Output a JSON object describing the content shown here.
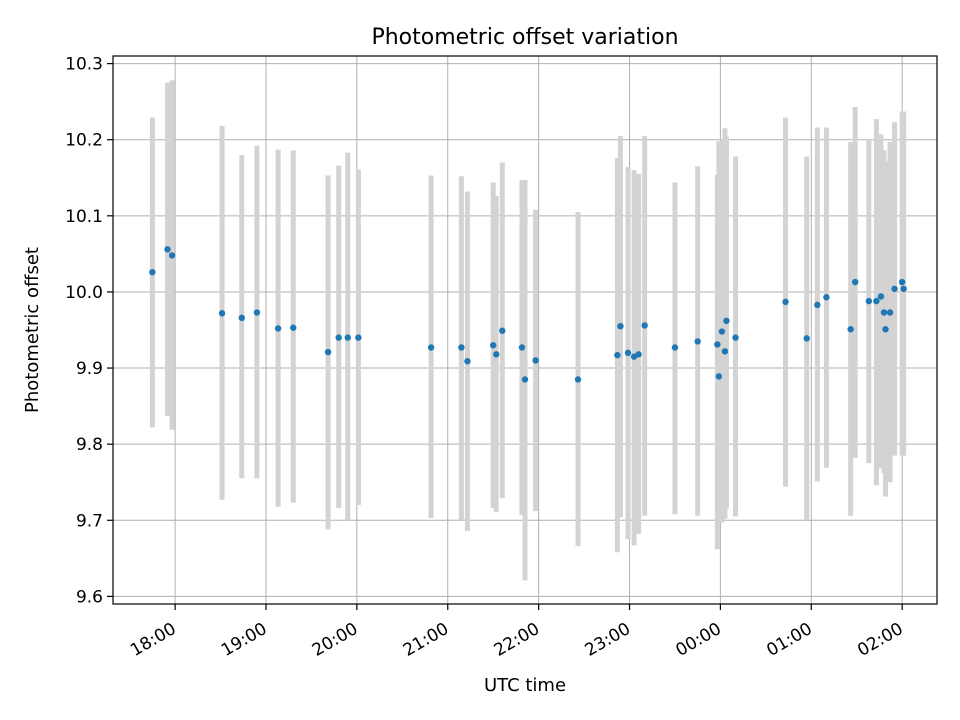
{
  "chart_data": {
    "type": "scatter",
    "title": "Photometric offset variation",
    "xlabel": "UTC time",
    "ylabel": "Photometric offset",
    "x_ticks": [
      "18:00",
      "19:00",
      "20:00",
      "21:00",
      "22:00",
      "23:00",
      "00:00",
      "01:00",
      "02:00"
    ],
    "x_tick_times": [
      "17:59",
      "18:59",
      "19:59",
      "20:59",
      "21:59",
      "22:59",
      "23:59",
      "00:59",
      "01:59"
    ],
    "xlim": [
      "17:18",
      "02:22"
    ],
    "y_ticks": [
      "9.6",
      "9.7",
      "9.8",
      "9.9",
      "10.0",
      "10.1",
      "10.2",
      "10.3"
    ],
    "ylim": [
      9.59,
      10.31
    ],
    "grid": true,
    "colors": {
      "points": "#1f77b4",
      "errorbars": "#d3d3d3",
      "grid": "#b0b0b0"
    },
    "series": [
      {
        "x": [
          "17:44",
          "17:54",
          "17:57",
          "18:30",
          "18:43",
          "18:53",
          "19:07",
          "19:17",
          "19:40",
          "19:47",
          "19:53",
          "20:00",
          "20:48",
          "21:08",
          "21:12",
          "21:29",
          "21:31",
          "21:35",
          "21:48",
          "21:50",
          "21:57",
          "22:25",
          "22:51",
          "22:53",
          "22:58",
          "23:02",
          "23:05",
          "23:09",
          "23:29",
          "23:44",
          "23:57",
          "23:58",
          "24:00",
          "24:02",
          "24:03",
          "24:09",
          "24:42",
          "24:56",
          "25:03",
          "25:09",
          "25:25",
          "25:28",
          "25:37",
          "25:42",
          "25:45",
          "25:47",
          "25:48",
          "25:51",
          "25:54",
          "25:59",
          "26:00"
        ],
        "y": [
          10.026,
          10.056,
          10.048,
          9.972,
          9.966,
          9.973,
          9.952,
          9.953,
          9.921,
          9.94,
          9.94,
          9.94,
          9.927,
          9.927,
          9.909,
          9.93,
          9.918,
          9.949,
          9.927,
          9.885,
          9.91,
          9.885,
          9.917,
          9.955,
          9.92,
          9.915,
          9.918,
          9.956,
          9.927,
          9.935,
          9.931,
          9.889,
          9.948,
          9.922,
          9.962,
          9.94,
          9.987,
          9.939,
          9.983,
          9.993,
          9.951,
          10.013,
          9.988,
          9.988,
          9.994,
          9.973,
          9.951,
          9.973,
          10.004,
          10.013,
          10.004
        ],
        "err_low": [
          9.822,
          9.837,
          9.819,
          9.727,
          9.755,
          9.755,
          9.718,
          9.723,
          9.688,
          9.716,
          9.7,
          9.72,
          9.703,
          9.7,
          9.686,
          9.716,
          9.711,
          9.729,
          9.707,
          9.621,
          9.712,
          9.666,
          9.658,
          9.704,
          9.675,
          9.667,
          9.682,
          9.706,
          9.708,
          9.706,
          9.662,
          9.705,
          9.697,
          9.702,
          9.716,
          9.705,
          9.744,
          9.701,
          9.751,
          9.769,
          9.706,
          9.782,
          9.775,
          9.746,
          9.768,
          9.762,
          9.731,
          9.75,
          9.785,
          9.785,
          9.785
        ],
        "err_high": [
          10.229,
          10.275,
          10.278,
          10.218,
          10.18,
          10.192,
          10.187,
          10.186,
          10.153,
          10.166,
          10.183,
          10.161,
          10.153,
          10.152,
          10.132,
          10.144,
          10.126,
          10.17,
          10.147,
          10.147,
          10.108,
          10.105,
          10.176,
          10.205,
          10.164,
          10.16,
          10.155,
          10.205,
          10.144,
          10.165,
          10.154,
          10.198,
          10.2,
          10.215,
          10.204,
          10.178,
          10.229,
          10.178,
          10.216,
          10.216,
          10.197,
          10.243,
          10.2,
          10.227,
          10.207,
          10.186,
          10.172,
          10.197,
          10.223,
          10.237,
          10.237
        ]
      }
    ]
  }
}
